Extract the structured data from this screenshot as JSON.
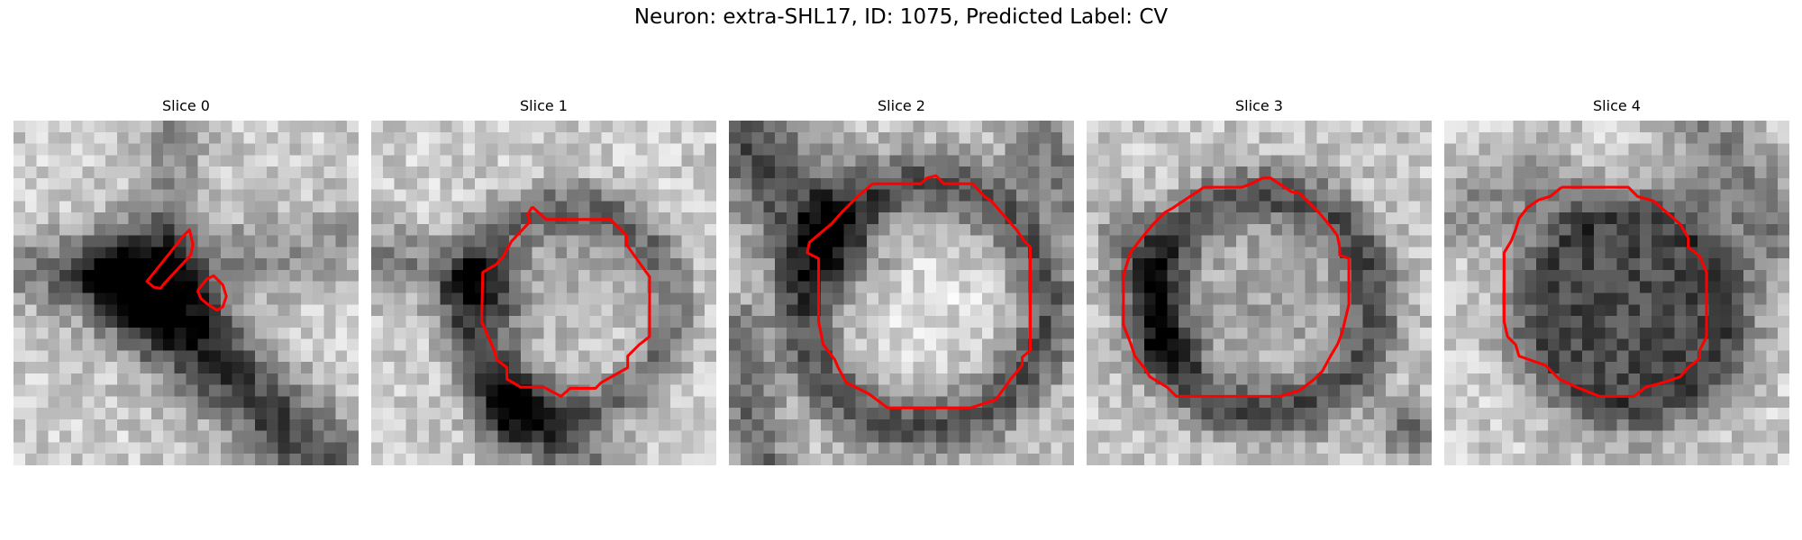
{
  "figure": {
    "title": "Neuron: extra-SHL17, ID: 1075, Predicted Label: CV"
  },
  "colors": {
    "contour": "#ff0000",
    "background": "#ffffff"
  },
  "panels": [
    {
      "label": "Slice 0"
    },
    {
      "label": "Slice 1"
    },
    {
      "label": "Slice 2"
    },
    {
      "label": "Slice 3"
    },
    {
      "label": "Slice 4"
    }
  ]
}
